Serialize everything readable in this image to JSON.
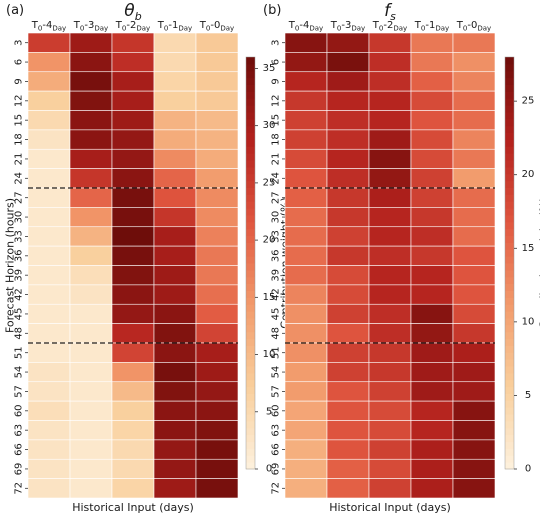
{
  "colormap": {
    "name": "OrRd",
    "stops": [
      "#fdf1de",
      "#f9cf9c",
      "#f29a6b",
      "#e0563f",
      "#b3211d",
      "#6e0d0a"
    ]
  },
  "chart_data": [
    {
      "type": "heatmap",
      "panel_label": "(a)",
      "title": "θb",
      "title_main": "θ",
      "title_sub": "b",
      "xlabel": "Historical Input (days)",
      "ylabel": "Forecast Horizon (hours)",
      "colorbar_label": "Contribution weight (%)",
      "color_range": [
        0,
        36
      ],
      "colorbar_ticks": [
        0,
        5,
        10,
        15,
        20,
        25,
        30,
        35
      ],
      "columns": [
        {
          "base": "T",
          "sub0": "0",
          "mid": "-4",
          "sub1": "Day"
        },
        {
          "base": "T",
          "sub0": "0",
          "mid": "-3",
          "sub1": "Day"
        },
        {
          "base": "T",
          "sub0": "0",
          "mid": "-2",
          "sub1": "Day"
        },
        {
          "base": "T",
          "sub0": "0",
          "mid": "-1",
          "sub1": "Day"
        },
        {
          "base": "T",
          "sub0": "0",
          "mid": "-0",
          "sub1": "Day"
        }
      ],
      "rows": [
        "3",
        "6",
        "9",
        "12",
        "15",
        "18",
        "21",
        "24",
        "27",
        "30",
        "33",
        "36",
        "39",
        "42",
        "45",
        "48",
        "51",
        "54",
        "57",
        "60",
        "63",
        "66",
        "69",
        "72"
      ],
      "separator_after_rows": [
        "24",
        "48"
      ],
      "values": [
        [
          25,
          31,
          26,
          5,
          8
        ],
        [
          15,
          33,
          27,
          5,
          8
        ],
        [
          12,
          35,
          30,
          6,
          8
        ],
        [
          7,
          34,
          30,
          7,
          8
        ],
        [
          5,
          33,
          31,
          11,
          10
        ],
        [
          3,
          33,
          32,
          12,
          11
        ],
        [
          2,
          30,
          32,
          16,
          12
        ],
        [
          2,
          26,
          33,
          20,
          14
        ],
        [
          2,
          20,
          35,
          22,
          16
        ],
        [
          2,
          15,
          35,
          26,
          16
        ],
        [
          2,
          11,
          36,
          30,
          17
        ],
        [
          2,
          7,
          35,
          30,
          18
        ],
        [
          2,
          4,
          34,
          31,
          18
        ],
        [
          2,
          3,
          33,
          31,
          19
        ],
        [
          2,
          2,
          32,
          33,
          21
        ],
        [
          2,
          2,
          28,
          34,
          24
        ],
        [
          2,
          2,
          24,
          33,
          30
        ],
        [
          3,
          2,
          15,
          35,
          31
        ],
        [
          3,
          2,
          10,
          34,
          32
        ],
        [
          4,
          2,
          7,
          33,
          33
        ],
        [
          3,
          2,
          6,
          33,
          34
        ],
        [
          3,
          2,
          5,
          32,
          35
        ],
        [
          3,
          2,
          5,
          32,
          35
        ],
        [
          3,
          2,
          6,
          31,
          35
        ]
      ]
    },
    {
      "type": "heatmap",
      "panel_label": "(b)",
      "title": "fs",
      "title_main": "f",
      "title_sub": "s",
      "xlabel": "Historical Input (days)",
      "ylabel": "",
      "colorbar_label": "Contribution weight (%)",
      "color_range": [
        0,
        28
      ],
      "colorbar_ticks": [
        0,
        5,
        10,
        15,
        20,
        25
      ],
      "columns": [
        {
          "base": "T",
          "sub0": "0",
          "mid": "-4",
          "sub1": "Day"
        },
        {
          "base": "T",
          "sub0": "0",
          "mid": "-3",
          "sub1": "Day"
        },
        {
          "base": "T",
          "sub0": "0",
          "mid": "-2",
          "sub1": "Day"
        },
        {
          "base": "T",
          "sub0": "0",
          "mid": "-1",
          "sub1": "Day"
        },
        {
          "base": "T",
          "sub0": "0",
          "mid": "-0",
          "sub1": "Day"
        }
      ],
      "rows": [
        "3",
        "6",
        "9",
        "12",
        "15",
        "18",
        "21",
        "24",
        "27",
        "30",
        "33",
        "36",
        "39",
        "42",
        "45",
        "48",
        "51",
        "54",
        "57",
        "60",
        "63",
        "66",
        "69",
        "72"
      ],
      "separator_after_rows": [
        "24",
        "48"
      ],
      "values": [
        [
          26,
          25,
          20,
          14,
          14
        ],
        [
          25,
          27,
          21,
          14,
          12
        ],
        [
          22,
          24,
          21,
          16,
          13
        ],
        [
          20,
          22,
          22,
          18,
          15
        ],
        [
          19,
          21,
          22,
          17,
          15
        ],
        [
          19,
          21,
          24,
          18,
          13
        ],
        [
          18,
          22,
          26,
          18,
          14
        ],
        [
          17,
          21,
          25,
          19,
          11
        ],
        [
          16,
          20,
          23,
          19,
          15
        ],
        [
          15,
          20,
          22,
          20,
          15
        ],
        [
          15,
          19,
          22,
          21,
          15
        ],
        [
          15,
          20,
          21,
          20,
          17
        ],
        [
          15,
          18,
          22,
          22,
          17
        ],
        [
          13,
          18,
          22,
          22,
          17
        ],
        [
          12,
          19,
          21,
          26,
          18
        ],
        [
          12,
          17,
          21,
          25,
          20
        ],
        [
          12,
          19,
          20,
          24,
          23
        ],
        [
          11,
          19,
          20,
          24,
          24
        ],
        [
          11,
          17,
          19,
          24,
          24
        ],
        [
          10,
          17,
          18,
          22,
          26
        ],
        [
          10,
          17,
          18,
          22,
          26
        ],
        [
          9,
          17,
          19,
          23,
          26
        ],
        [
          9,
          16,
          18,
          23,
          26
        ],
        [
          9,
          16,
          19,
          23,
          26
        ]
      ]
    }
  ]
}
